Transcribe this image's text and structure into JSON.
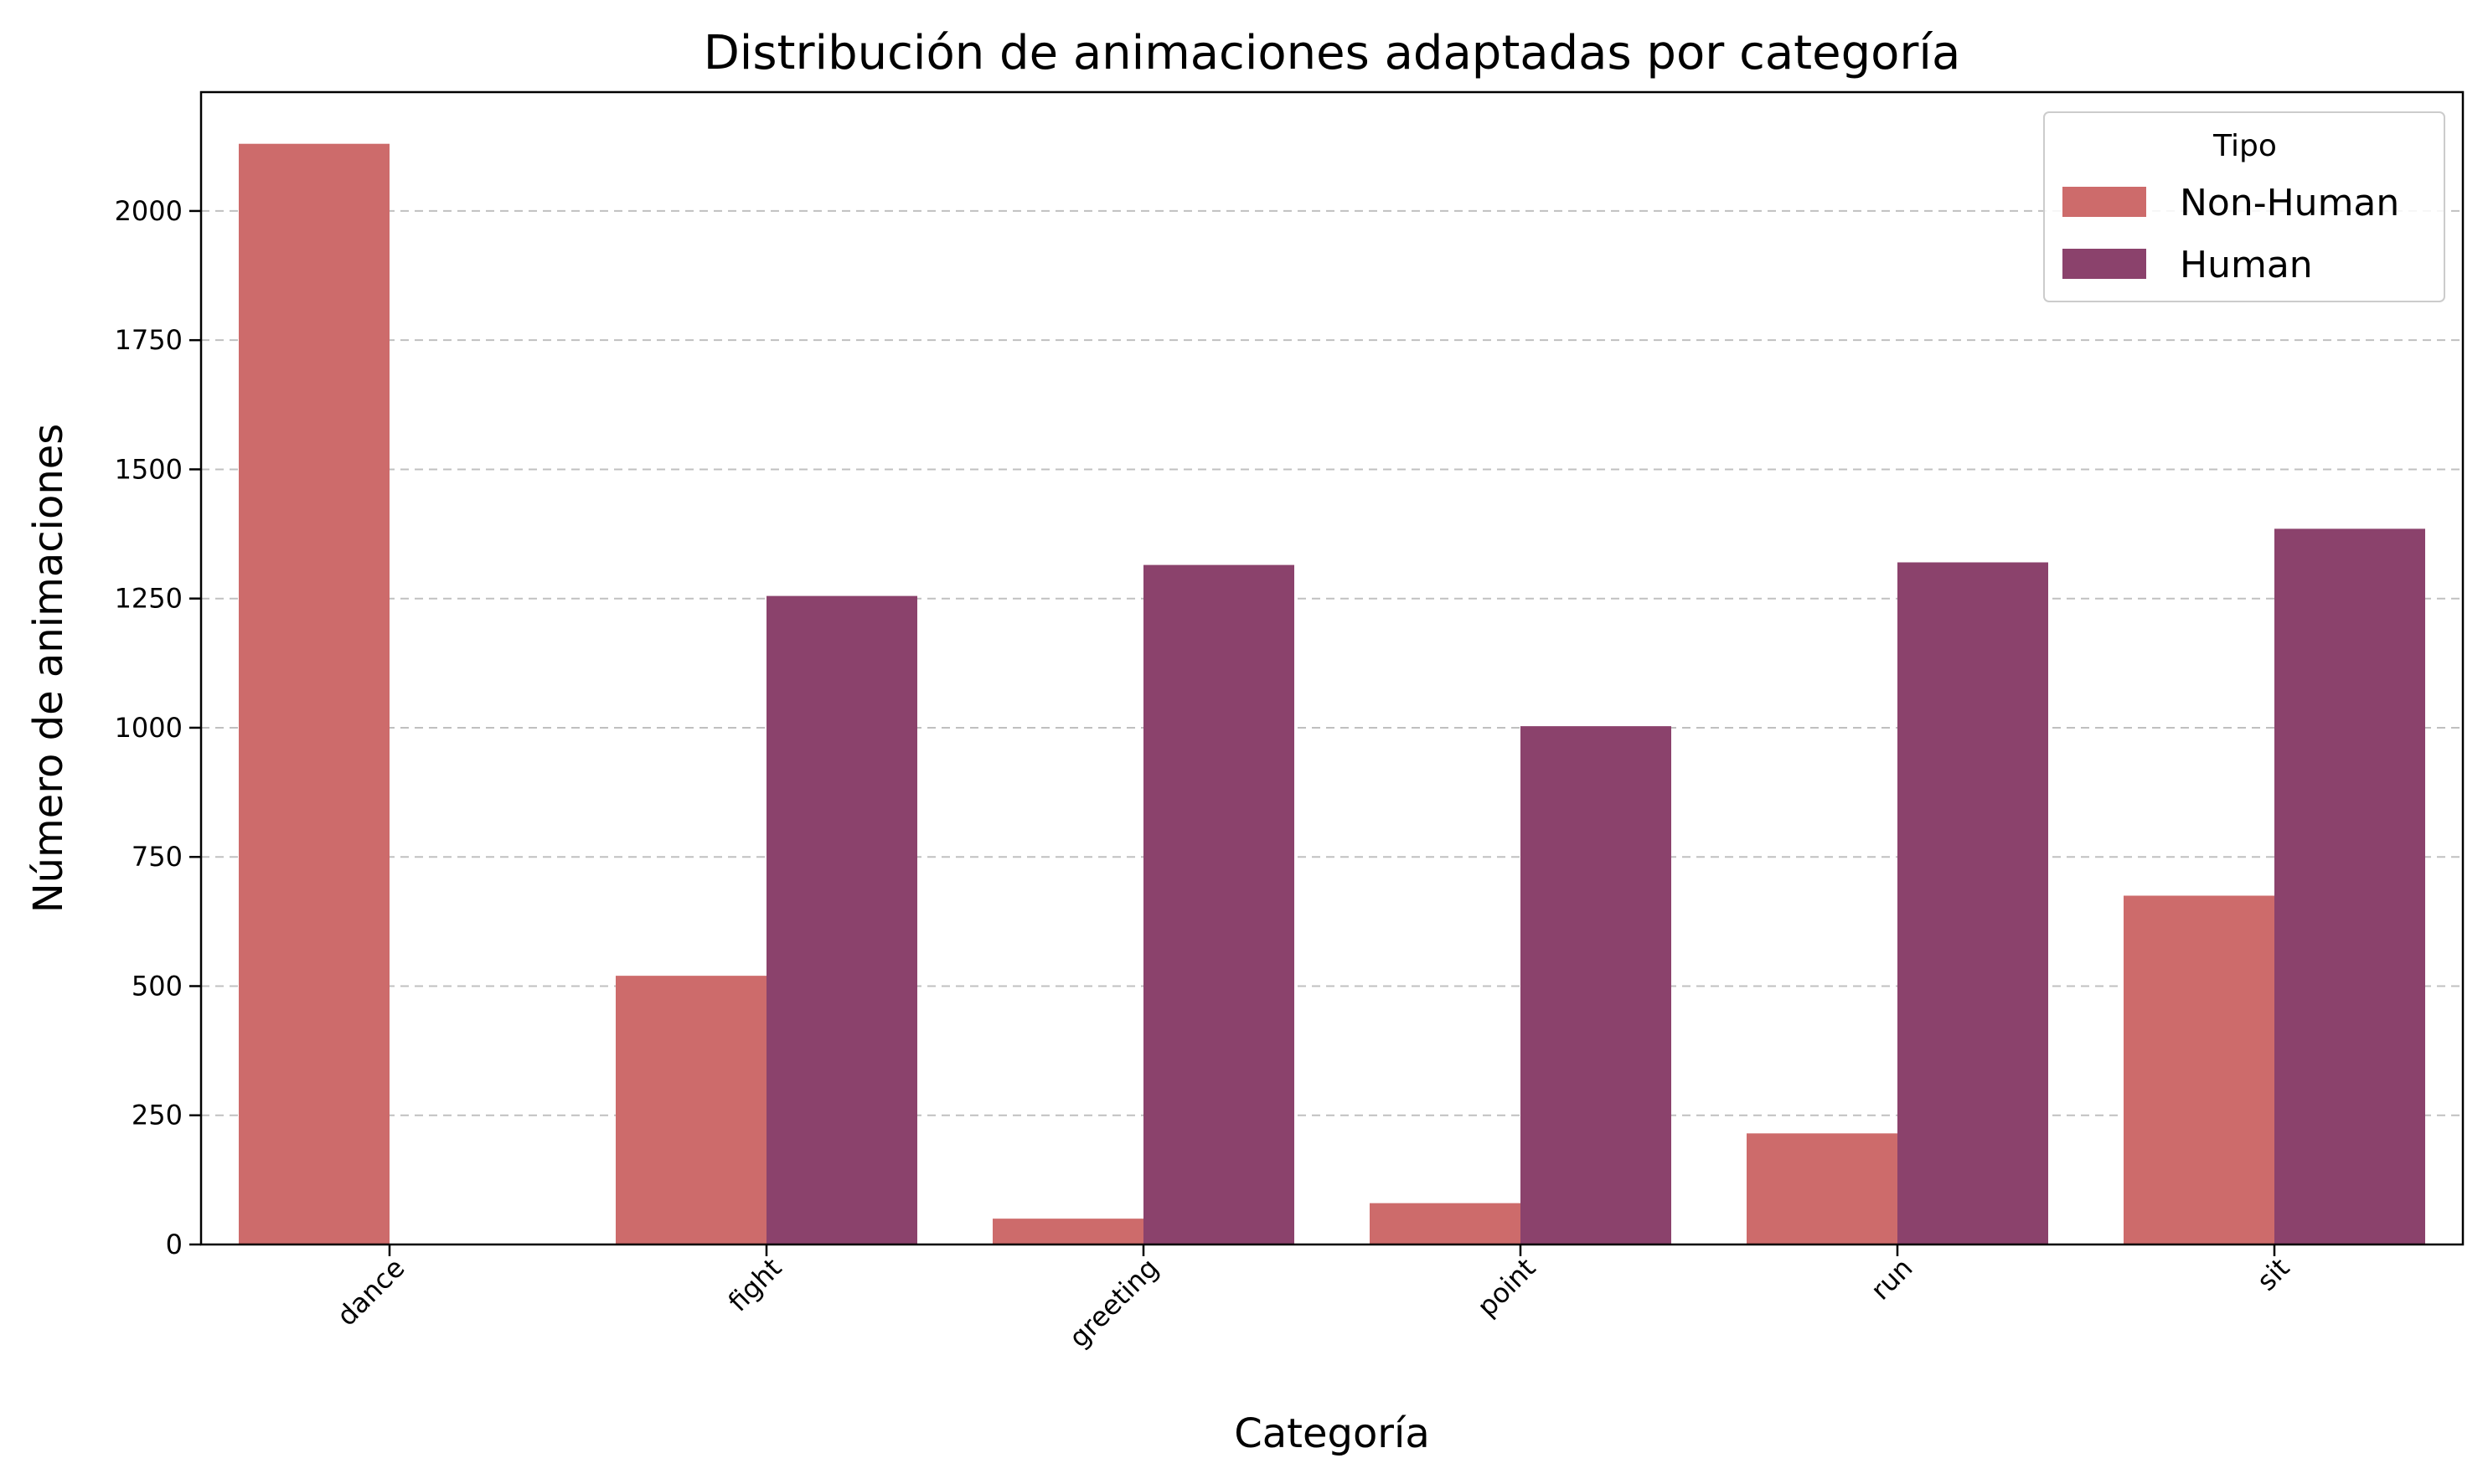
{
  "chart_data": {
    "type": "bar",
    "title": "Distribución de animaciones adaptadas por categoría",
    "xlabel": "Categoría",
    "ylabel": "Número de animaciones",
    "categories": [
      "dance",
      "fight",
      "greeting",
      "point",
      "run",
      "sit"
    ],
    "series": [
      {
        "name": "Non-Human",
        "color": "#cd6b6b",
        "values": [
          2130,
          520,
          50,
          80,
          215,
          675
        ]
      },
      {
        "name": "Human",
        "color": "#8b426c",
        "values": [
          0,
          1255,
          1315,
          1003,
          1320,
          1385
        ]
      }
    ],
    "ylim": [
      0,
      2230
    ],
    "yticks": [
      0,
      250,
      500,
      750,
      1000,
      1250,
      1500,
      1750,
      2000
    ],
    "grid": "y-dashed",
    "legend": {
      "title": "Tipo",
      "placement": "top-right"
    },
    "xtick_rotation": 45
  }
}
